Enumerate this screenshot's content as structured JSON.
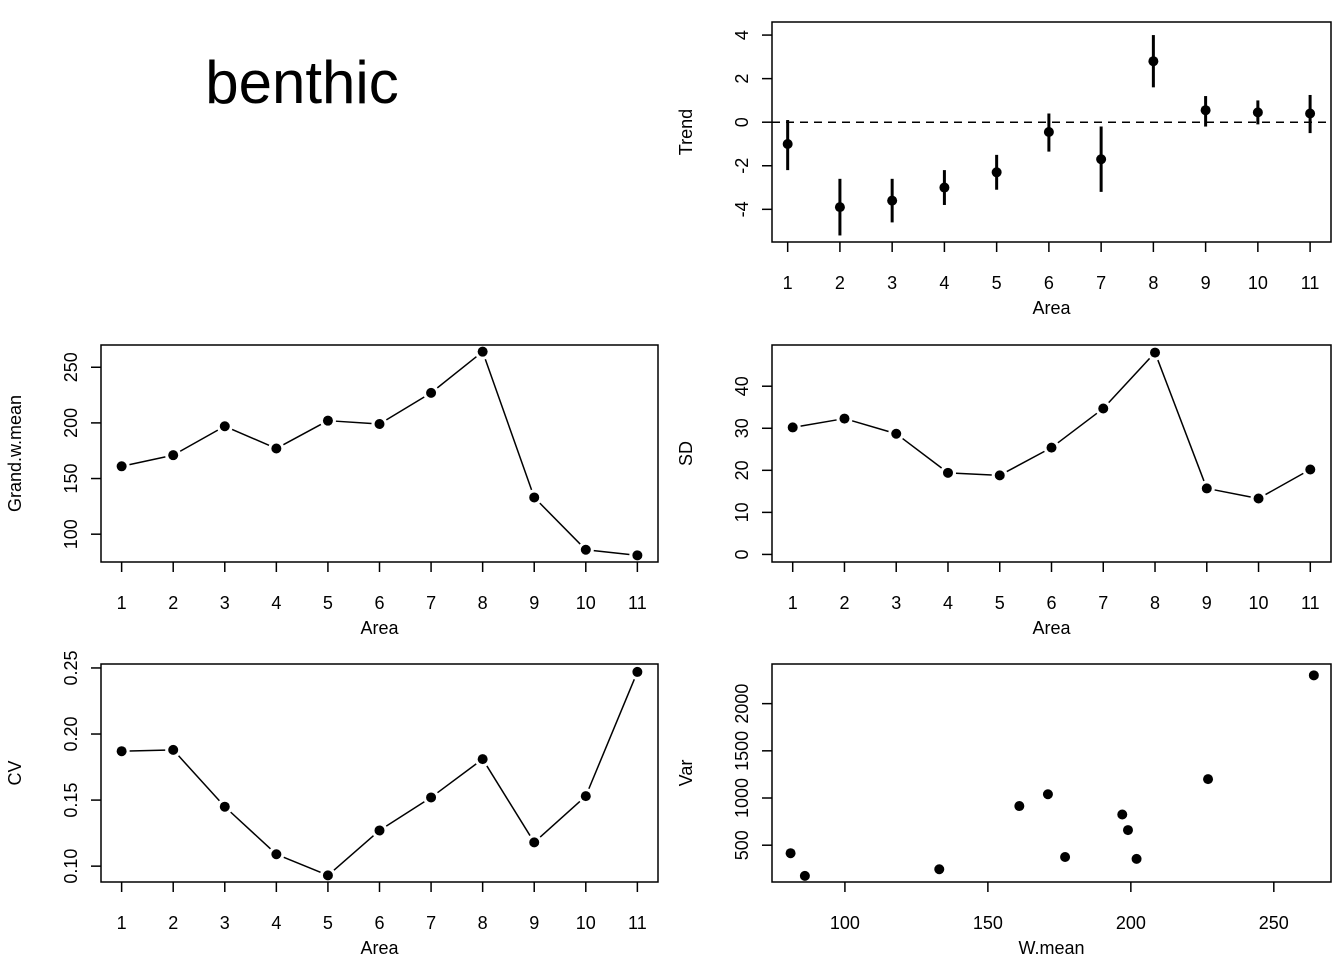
{
  "title": "benthic",
  "colors": {
    "ink": "#000000",
    "background": "#ffffff"
  },
  "chart_data": [
    {
      "id": "trend",
      "type": "scatter",
      "error_bars": true,
      "reference_line": {
        "y": 0,
        "style": "dashed"
      },
      "xlabel": "Area",
      "ylabel": "Trend",
      "xlim": [
        0.7,
        11.4
      ],
      "ylim": [
        -5.5,
        4.6
      ],
      "x_ticks": [
        1,
        2,
        3,
        4,
        5,
        6,
        7,
        8,
        9,
        10,
        11
      ],
      "y_ticks": [
        -4,
        -2,
        0,
        2,
        4
      ],
      "points": [
        {
          "x": 1,
          "y": -1.0,
          "lo": -2.2,
          "hi": 0.1
        },
        {
          "x": 2,
          "y": -3.9,
          "lo": -5.2,
          "hi": -2.6
        },
        {
          "x": 3,
          "y": -3.6,
          "lo": -4.6,
          "hi": -2.6
        },
        {
          "x": 4,
          "y": -3.0,
          "lo": -3.8,
          "hi": -2.2
        },
        {
          "x": 5,
          "y": -2.3,
          "lo": -3.1,
          "hi": -1.5
        },
        {
          "x": 6,
          "y": -0.45,
          "lo": -1.35,
          "hi": 0.4
        },
        {
          "x": 7,
          "y": -1.7,
          "lo": -3.2,
          "hi": -0.2
        },
        {
          "x": 8,
          "y": 2.8,
          "lo": 1.6,
          "hi": 4.0
        },
        {
          "x": 9,
          "y": 0.55,
          "lo": -0.2,
          "hi": 1.2
        },
        {
          "x": 10,
          "y": 0.45,
          "lo": -0.1,
          "hi": 1.0
        },
        {
          "x": 11,
          "y": 0.4,
          "lo": -0.5,
          "hi": 1.25
        }
      ]
    },
    {
      "id": "grandmean",
      "type": "line",
      "markers": true,
      "xlabel": "Area",
      "ylabel": "Grand.w.mean",
      "xlim": [
        0.6,
        11.4
      ],
      "ylim": [
        75,
        270
      ],
      "x_ticks": [
        1,
        2,
        3,
        4,
        5,
        6,
        7,
        8,
        9,
        10,
        11
      ],
      "y_ticks": [
        100,
        150,
        200,
        250
      ],
      "points": [
        {
          "x": 1,
          "y": 161
        },
        {
          "x": 2,
          "y": 171
        },
        {
          "x": 3,
          "y": 197
        },
        {
          "x": 4,
          "y": 177
        },
        {
          "x": 5,
          "y": 202
        },
        {
          "x": 6,
          "y": 199
        },
        {
          "x": 7,
          "y": 227
        },
        {
          "x": 8,
          "y": 264
        },
        {
          "x": 9,
          "y": 133
        },
        {
          "x": 10,
          "y": 86
        },
        {
          "x": 11,
          "y": 81
        }
      ]
    },
    {
      "id": "sd",
      "type": "line",
      "markers": true,
      "xlabel": "Area",
      "ylabel": "SD",
      "xlim": [
        0.6,
        11.4
      ],
      "ylim": [
        -1.8,
        49.8
      ],
      "x_ticks": [
        1,
        2,
        3,
        4,
        5,
        6,
        7,
        8,
        9,
        10,
        11
      ],
      "y_ticks": [
        0,
        10,
        20,
        30,
        40
      ],
      "points": [
        {
          "x": 1,
          "y": 30.2
        },
        {
          "x": 2,
          "y": 32.3
        },
        {
          "x": 3,
          "y": 28.7
        },
        {
          "x": 4,
          "y": 19.4
        },
        {
          "x": 5,
          "y": 18.8
        },
        {
          "x": 6,
          "y": 25.4
        },
        {
          "x": 7,
          "y": 34.7
        },
        {
          "x": 8,
          "y": 48.0
        },
        {
          "x": 9,
          "y": 15.7
        },
        {
          "x": 10,
          "y": 13.3
        },
        {
          "x": 11,
          "y": 20.2
        }
      ]
    },
    {
      "id": "cv",
      "type": "line",
      "markers": true,
      "xlabel": "Area",
      "ylabel": "CV",
      "xlim": [
        0.6,
        11.4
      ],
      "ylim": [
        0.088,
        0.253
      ],
      "x_ticks": [
        1,
        2,
        3,
        4,
        5,
        6,
        7,
        8,
        9,
        10,
        11
      ],
      "y_ticks": [
        0.1,
        0.15,
        0.2,
        0.25
      ],
      "y_tick_labels": [
        "0.10",
        "0.15",
        "0.20",
        "0.25"
      ],
      "points": [
        {
          "x": 1,
          "y": 0.187
        },
        {
          "x": 2,
          "y": 0.188
        },
        {
          "x": 3,
          "y": 0.145
        },
        {
          "x": 4,
          "y": 0.109
        },
        {
          "x": 5,
          "y": 0.093
        },
        {
          "x": 6,
          "y": 0.127
        },
        {
          "x": 7,
          "y": 0.152
        },
        {
          "x": 8,
          "y": 0.181
        },
        {
          "x": 9,
          "y": 0.118
        },
        {
          "x": 10,
          "y": 0.153
        },
        {
          "x": 11,
          "y": 0.247
        }
      ]
    },
    {
      "id": "var",
      "type": "scatter",
      "xlabel": "W.mean",
      "ylabel": "Var",
      "xlim": [
        74.5,
        270
      ],
      "ylim": [
        110,
        2420
      ],
      "x_ticks": [
        100,
        150,
        200,
        250
      ],
      "y_ticks": [
        500,
        1000,
        1500,
        2000
      ],
      "points": [
        {
          "x": 81,
          "y": 415
        },
        {
          "x": 86,
          "y": 175
        },
        {
          "x": 133,
          "y": 245
        },
        {
          "x": 161,
          "y": 915
        },
        {
          "x": 171,
          "y": 1040
        },
        {
          "x": 177,
          "y": 375
        },
        {
          "x": 197,
          "y": 825
        },
        {
          "x": 199,
          "y": 660
        },
        {
          "x": 202,
          "y": 355
        },
        {
          "x": 227,
          "y": 1200
        },
        {
          "x": 264,
          "y": 2300
        }
      ]
    }
  ]
}
